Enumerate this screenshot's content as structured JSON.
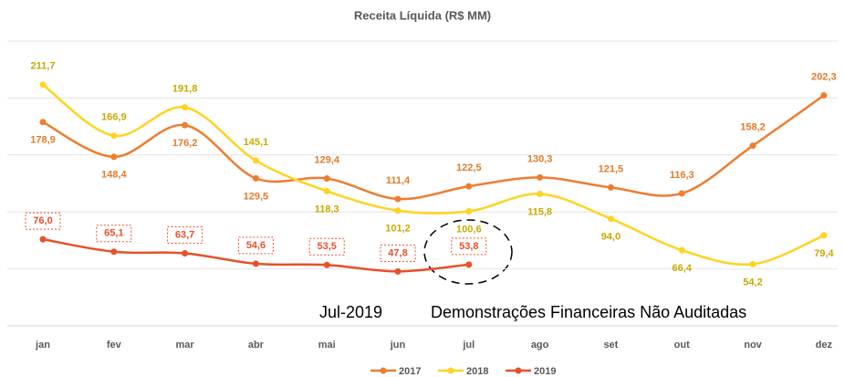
{
  "chart_data": {
    "type": "line",
    "title": "Receita Líquida (R$ MM)",
    "categories": [
      "jan",
      "fev",
      "mar",
      "abr",
      "mai",
      "jun",
      "jul",
      "ago",
      "set",
      "out",
      "nov",
      "dez"
    ],
    "series": [
      {
        "name": "2017",
        "color": "#ED7D31",
        "values": [
          178.9,
          148.4,
          176.2,
          129.5,
          129.4,
          111.4,
          122.5,
          130.3,
          121.5,
          116.3,
          158.2,
          202.3
        ],
        "value_labels": [
          "178,9",
          "148,4",
          "176,2",
          "129,5",
          "129,4",
          "111,4",
          "122,5",
          "130,3",
          "121,5",
          "116,3",
          "158,2",
          "202,3"
        ]
      },
      {
        "name": "2018",
        "color": "#FFD320",
        "values": [
          211.7,
          166.9,
          191.8,
          145.1,
          118.3,
          101.2,
          100.6,
          115.8,
          94.0,
          66.4,
          54.2,
          79.4
        ],
        "value_labels": [
          "211,7",
          "166,9",
          "191,8",
          "145,1",
          "118,3",
          "101,2",
          "100,6",
          "115,8",
          "94,0",
          "66,4",
          "54,2",
          "79,4"
        ]
      },
      {
        "name": "2019",
        "color": "#E8502A",
        "values": [
          76.0,
          65.1,
          63.7,
          54.6,
          53.5,
          47.8,
          53.8,
          null,
          null,
          null,
          null,
          null
        ],
        "value_labels": [
          "76,0",
          "65,1",
          "63,7",
          "54,6",
          "53,5",
          "47,8",
          "53,8",
          null,
          null,
          null,
          null,
          null
        ]
      }
    ],
    "annotations": [
      "Jul-2019",
      "Demonstrações Financeiras Não Auditadas"
    ],
    "ylim": [
      0,
      250
    ],
    "yticks": [
      0,
      50,
      100,
      150,
      200,
      250
    ],
    "grid": true,
    "legend": "bottom"
  }
}
